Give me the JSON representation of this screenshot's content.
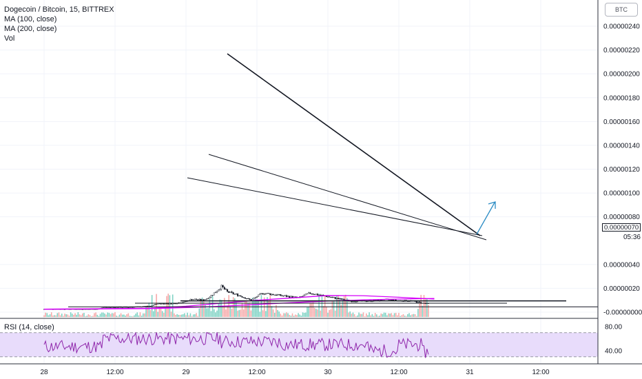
{
  "header": {
    "title": "Dogecoin / Bitcoin, 15, BITTREX",
    "ma100": "MA (100, close)",
    "ma200": "MA (200, close)",
    "vol": "Vol",
    "rsi": "RSI (14, close)",
    "currency": "BTC"
  },
  "price_badge": "0.00000070",
  "timer_badge": "05:36",
  "colors": {
    "up": "#131722",
    "down": "#131722",
    "ma": "#d500f9",
    "rsi_band": "#e8dcfb",
    "rsi_line": "#8e24aa",
    "vol_up": "#7fd3c4",
    "vol_down": "#f6a9a9",
    "grid": "#f0f3fa"
  },
  "chart_data": {
    "type": "candlestick",
    "title": "Dogecoin / Bitcoin, 15, BITTREX",
    "x_ticks": [
      "28",
      "12:00",
      "29",
      "12:00",
      "30",
      "12:00",
      "31",
      "12:00"
    ],
    "y_ticks": [
      "0.00000240",
      "0.00000220",
      "0.00000200",
      "0.00000180",
      "0.00000160",
      "0.00000140",
      "0.00000120",
      "0.00000100",
      "0.00000080",
      "0.00000040",
      "0.00000020",
      "-0.00000000"
    ],
    "ylim": [
      -1e-08,
      2.5e-06
    ],
    "rsi_ticks": [
      "80.00",
      "40.00"
    ],
    "rsi_band": [
      30,
      70
    ],
    "series_close_approx": [
      {
        "t": "28 00:00",
        "price": 2.5e-08
      },
      {
        "t": "28 09:00",
        "price": 2.5e-08
      },
      {
        "t": "28 10:00",
        "price": 4e-08
      },
      {
        "t": "28 14:00",
        "price": 4e-08
      },
      {
        "t": "28 18:00",
        "price": 5e-08
      },
      {
        "t": "28 19:00",
        "price": 7e-08
      },
      {
        "t": "28 22:00",
        "price": 7.2e-08
      },
      {
        "t": "29 00:00",
        "price": 9e-08
      },
      {
        "t": "29 01:00",
        "price": 1.1e-07
      },
      {
        "t": "29 03:00",
        "price": 1e-07
      },
      {
        "t": "29 04:00",
        "price": 1.3e-07
      },
      {
        "t": "29 05:00",
        "price": 1.7e-07
      },
      {
        "t": "29 06:00",
        "price": 2.15e-07
      },
      {
        "t": "29 07:00",
        "price": 1.7e-07
      },
      {
        "t": "29 09:00",
        "price": 1.4e-07
      },
      {
        "t": "29 11:00",
        "price": 1e-07
      },
      {
        "t": "29 13:00",
        "price": 1.6e-07
      },
      {
        "t": "29 16:00",
        "price": 1.4e-07
      },
      {
        "t": "29 19:00",
        "price": 1.2e-07
      },
      {
        "t": "29 21:00",
        "price": 1.6e-07
      },
      {
        "t": "30 00:00",
        "price": 1.3e-07
      },
      {
        "t": "30 02:00",
        "price": 1.1e-07
      },
      {
        "t": "30 04:00",
        "price": 9.2e-08
      },
      {
        "t": "30 08:00",
        "price": 9.5e-08
      },
      {
        "t": "30 10:00",
        "price": 1.05e-07
      },
      {
        "t": "30 12:00",
        "price": 9.5e-08
      },
      {
        "t": "30 14:00",
        "price": 9.5e-08
      },
      {
        "t": "30 16:00",
        "price": 7.5e-08
      },
      {
        "t": "30 17:00",
        "price": 7e-08
      }
    ],
    "ma100_approx": [
      {
        "t": "28 00:00",
        "price": 2.5e-08
      },
      {
        "t": "28 18:00",
        "price": 3.3e-08
      },
      {
        "t": "29 00:00",
        "price": 5e-08
      },
      {
        "t": "29 06:00",
        "price": 7.5e-08
      },
      {
        "t": "29 12:00",
        "price": 1e-07
      },
      {
        "t": "29 18:00",
        "price": 1.2e-07
      },
      {
        "t": "30 00:00",
        "price": 1.4e-07
      },
      {
        "t": "30 06:00",
        "price": 1.38e-07
      },
      {
        "t": "30 12:00",
        "price": 1.25e-07
      },
      {
        "t": "30 18:00",
        "price": 1.1e-07
      }
    ],
    "ma200_approx": [
      {
        "t": "28 00:00",
        "price": 2.5e-08
      },
      {
        "t": "28 18:00",
        "price": 3e-08
      },
      {
        "t": "29 00:00",
        "price": 3.8e-08
      },
      {
        "t": "29 06:00",
        "price": 5e-08
      },
      {
        "t": "29 12:00",
        "price": 6.5e-08
      },
      {
        "t": "29 18:00",
        "price": 8e-08
      },
      {
        "t": "30 00:00",
        "price": 9.3e-08
      },
      {
        "t": "30 06:00",
        "price": 1.03e-07
      },
      {
        "t": "30 12:00",
        "price": 1.1e-07
      },
      {
        "t": "30 18:00",
        "price": 1.15e-07
      }
    ],
    "horizontal_levels": [
      9.5e-08,
      7.5e-08,
      4.5e-08
    ]
  }
}
